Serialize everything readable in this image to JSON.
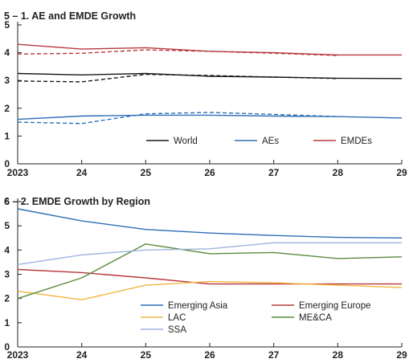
{
  "chart_data": [
    {
      "type": "line",
      "title": "5 – 1. AE and EMDE Growth",
      "x": [
        "2023",
        "24",
        "25",
        "26",
        "27",
        "28",
        "29"
      ],
      "ylim": [
        0,
        5
      ],
      "yticks": [
        "0",
        "1",
        "2",
        "3",
        "4",
        "5"
      ],
      "grid": false,
      "legend_position": "bottom-right",
      "series": [
        {
          "name": "World",
          "color": "#1a1a1a",
          "style": "solid",
          "values": [
            3.25,
            3.2,
            3.25,
            3.15,
            3.12,
            3.08,
            3.07
          ]
        },
        {
          "name": "",
          "color": "#1a1a1a",
          "style": "dashed",
          "values": [
            2.98,
            2.95,
            3.22,
            3.18,
            3.12,
            3.07,
            null
          ]
        },
        {
          "name": "AEs",
          "color": "#2c6fb5",
          "style": "solid",
          "values": [
            1.6,
            1.72,
            1.75,
            1.75,
            1.72,
            1.7,
            1.65
          ]
        },
        {
          "name": "",
          "color": "#2c6fb5",
          "style": "dashed",
          "values": [
            1.5,
            1.45,
            1.8,
            1.85,
            1.78,
            1.7,
            null
          ]
        },
        {
          "name": "EMDEs",
          "color": "#b8383f",
          "style": "solid",
          "values": [
            4.3,
            4.13,
            4.18,
            4.05,
            4.0,
            3.92,
            3.92
          ]
        },
        {
          "name": "",
          "color": "#b8383f",
          "style": "dashed",
          "values": [
            3.95,
            3.98,
            4.1,
            4.05,
            3.98,
            3.9,
            null
          ]
        }
      ]
    },
    {
      "type": "line",
      "title": "6 – 2. EMDE Growth by Region",
      "x": [
        "2023",
        "24",
        "25",
        "26",
        "27",
        "28",
        "29"
      ],
      "ylim": [
        0,
        6
      ],
      "yticks": [
        "0",
        "1",
        "2",
        "3",
        "4",
        "5",
        "6"
      ],
      "grid": false,
      "legend_position": "bottom",
      "series": [
        {
          "name": "Emerging Asia",
          "color": "#2c6fb5",
          "values": [
            5.7,
            5.2,
            4.85,
            4.7,
            4.6,
            4.52,
            4.5
          ]
        },
        {
          "name": "Emerging Europe",
          "color": "#b8383f",
          "values": [
            3.2,
            3.07,
            2.85,
            2.6,
            2.6,
            2.6,
            2.6
          ]
        },
        {
          "name": "LAC",
          "color": "#f2b640",
          "values": [
            2.3,
            1.95,
            2.55,
            2.7,
            2.65,
            2.55,
            2.45
          ]
        },
        {
          "name": "ME&CA",
          "color": "#5a8a3c",
          "values": [
            2.0,
            2.85,
            4.25,
            3.85,
            3.9,
            3.65,
            3.72
          ]
        },
        {
          "name": "SSA",
          "color": "#9fb4de",
          "values": [
            3.4,
            3.8,
            4.0,
            4.05,
            4.3,
            4.3,
            4.3
          ]
        }
      ]
    }
  ]
}
